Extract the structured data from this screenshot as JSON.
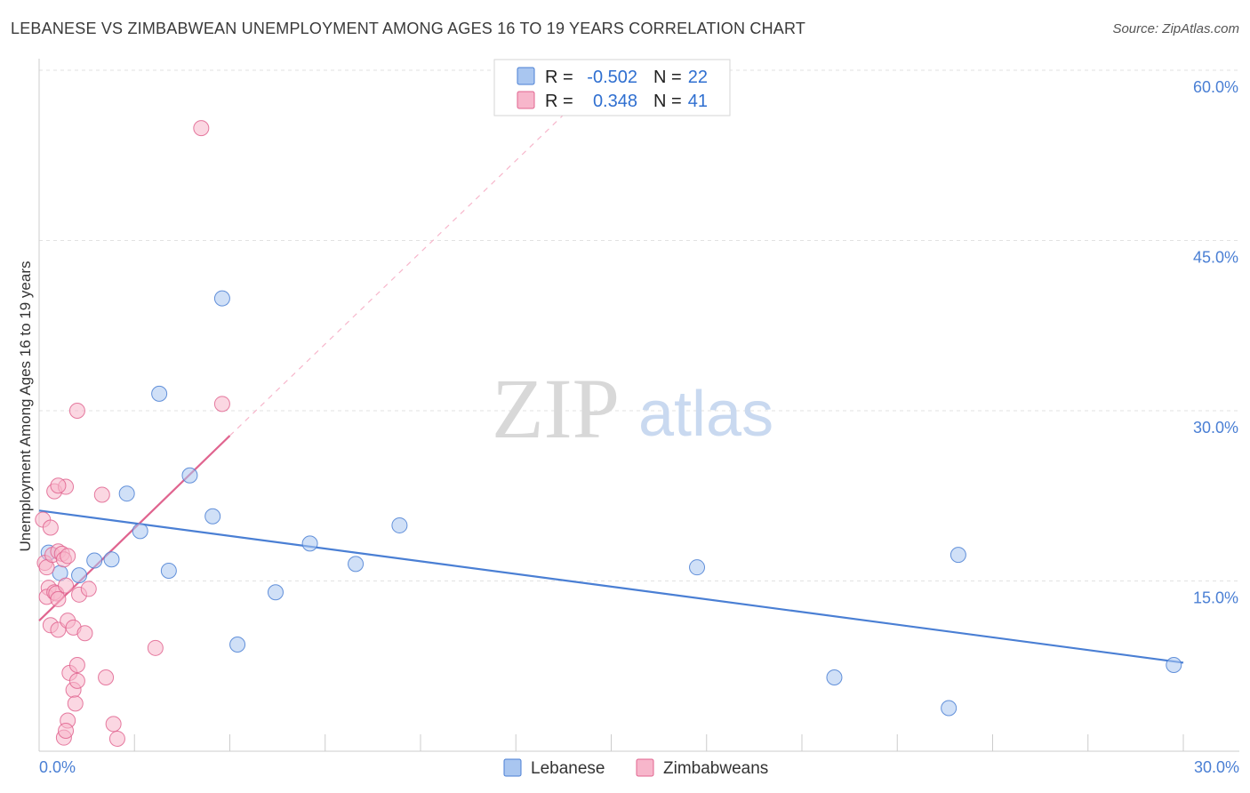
{
  "chart_data": {
    "type": "scatter",
    "title": "LEBANESE VS ZIMBABWEAN UNEMPLOYMENT AMONG AGES 16 TO 19 YEARS CORRELATION CHART",
    "source": "Source: ZipAtlas.com",
    "xlabel": "",
    "ylabel": "Unemployment Among Ages 16 to 19 years",
    "xlim": [
      0,
      30
    ],
    "ylim": [
      0,
      60
    ],
    "x_tick_labels": [
      "0.0%",
      "30.0%"
    ],
    "y_ticks": [
      15,
      30,
      45,
      60
    ],
    "y_tick_labels": [
      "15.0%",
      "30.0%",
      "45.0%",
      "60.0%"
    ],
    "watermark": {
      "zip": "ZIP",
      "atlas": "atlas"
    },
    "legend": {
      "r_label": "R =",
      "n_label": "N =",
      "entries": [
        {
          "name": "Lebanese",
          "r": "-0.502",
          "n": "22"
        },
        {
          "name": "Zimbabweans",
          "r": "0.348",
          "n": "41"
        }
      ]
    },
    "series": [
      {
        "name": "Lebanese",
        "color": "#4a7fd4",
        "fill": "#a9c6f0",
        "trend": {
          "x0": 0.0,
          "y0": 21.2,
          "x1": 30.0,
          "y1": 7.8,
          "dashed_to": null
        },
        "points": [
          [
            0.25,
            17.5
          ],
          [
            0.55,
            15.7
          ],
          [
            1.05,
            15.5
          ],
          [
            1.45,
            16.8
          ],
          [
            1.9,
            16.9
          ],
          [
            2.3,
            22.7
          ],
          [
            2.65,
            19.4
          ],
          [
            3.15,
            31.5
          ],
          [
            3.4,
            15.9
          ],
          [
            3.95,
            24.3
          ],
          [
            4.55,
            20.7
          ],
          [
            4.8,
            39.9
          ],
          [
            5.2,
            9.4
          ],
          [
            6.2,
            14.0
          ],
          [
            7.1,
            18.3
          ],
          [
            8.3,
            16.5
          ],
          [
            9.45,
            19.9
          ],
          [
            17.25,
            16.2
          ],
          [
            20.85,
            6.5
          ],
          [
            23.85,
            3.8
          ],
          [
            24.1,
            17.3
          ],
          [
            29.75,
            7.6
          ]
        ]
      },
      {
        "name": "Zimbabweans",
        "color": "#e0648f",
        "fill": "#f7b6cb",
        "trend": {
          "x0": 0.0,
          "y0": 11.5,
          "x1": 5.0,
          "y1": 27.8,
          "dashed_to": [
            14.5,
            58.5
          ]
        },
        "points": [
          [
            0.1,
            20.4
          ],
          [
            0.15,
            16.6
          ],
          [
            0.2,
            16.2
          ],
          [
            0.25,
            14.4
          ],
          [
            0.2,
            13.6
          ],
          [
            0.3,
            19.7
          ],
          [
            0.3,
            11.1
          ],
          [
            0.4,
            22.9
          ],
          [
            0.4,
            14.0
          ],
          [
            0.45,
            13.9
          ],
          [
            0.5,
            13.4
          ],
          [
            0.35,
            17.3
          ],
          [
            0.5,
            17.6
          ],
          [
            0.6,
            17.4
          ],
          [
            0.65,
            16.9
          ],
          [
            0.7,
            23.3
          ],
          [
            0.5,
            10.7
          ],
          [
            0.7,
            14.6
          ],
          [
            0.75,
            11.5
          ],
          [
            0.75,
            17.2
          ],
          [
            0.5,
            23.4
          ],
          [
            0.8,
            6.9
          ],
          [
            0.75,
            2.7
          ],
          [
            0.65,
            1.2
          ],
          [
            0.7,
            1.8
          ],
          [
            0.9,
            5.4
          ],
          [
            0.9,
            10.9
          ],
          [
            0.95,
            4.2
          ],
          [
            1.0,
            7.6
          ],
          [
            1.0,
            6.2
          ],
          [
            1.0,
            30.0
          ],
          [
            1.05,
            13.8
          ],
          [
            1.2,
            10.4
          ],
          [
            1.3,
            14.3
          ],
          [
            1.65,
            22.6
          ],
          [
            1.75,
            6.5
          ],
          [
            1.95,
            2.4
          ],
          [
            2.05,
            1.1
          ],
          [
            3.05,
            9.1
          ],
          [
            4.25,
            54.9
          ],
          [
            4.8,
            30.6
          ]
        ]
      }
    ]
  }
}
